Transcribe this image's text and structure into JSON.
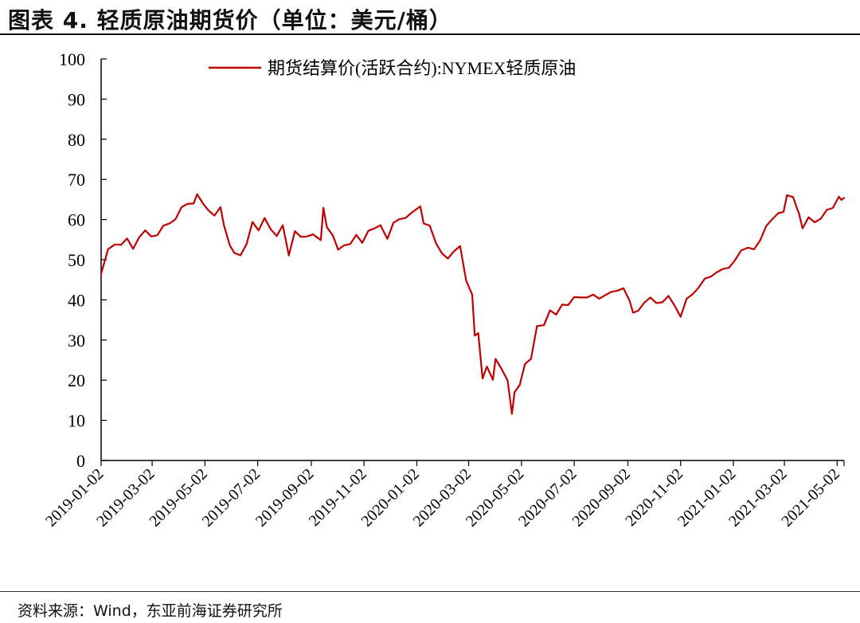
{
  "figure": {
    "title": "图表 4.  轻质原油期货价（单位：美元/桶）",
    "source": "资料来源：Wind，东亚前海证券研究所"
  },
  "chart_data": {
    "type": "line",
    "title": "",
    "xlabel": "",
    "ylabel": "",
    "ylim": [
      0,
      100
    ],
    "y_ticks": [
      0,
      10,
      20,
      30,
      40,
      50,
      60,
      70,
      80,
      90,
      100
    ],
    "x_ticks": [
      "2019-01-02",
      "2019-03-02",
      "2019-05-02",
      "2019-07-02",
      "2019-09-02",
      "2019-11-02",
      "2020-01-02",
      "2020-03-02",
      "2020-05-02",
      "2020-07-02",
      "2020-09-02",
      "2020-11-02",
      "2021-01-02",
      "2021-03-02",
      "2021-05-02"
    ],
    "x_range": [
      "2019-01-02",
      "2021-05-10"
    ],
    "grid": false,
    "legend_position": "top-center",
    "series": [
      {
        "name": "期货结算价(活跃合约):NYMEX轻质原油",
        "color": "#c00000",
        "points": [
          [
            "2019-01-02",
            46.5
          ],
          [
            "2019-01-10",
            52.6
          ],
          [
            "2019-01-18",
            53.8
          ],
          [
            "2019-01-25",
            53.7
          ],
          [
            "2019-02-01",
            55.3
          ],
          [
            "2019-02-08",
            52.7
          ],
          [
            "2019-02-15",
            55.6
          ],
          [
            "2019-02-22",
            57.3
          ],
          [
            "2019-03-01",
            55.8
          ],
          [
            "2019-03-08",
            56.1
          ],
          [
            "2019-03-15",
            58.5
          ],
          [
            "2019-03-22",
            59.0
          ],
          [
            "2019-03-29",
            60.1
          ],
          [
            "2019-04-05",
            63.1
          ],
          [
            "2019-04-12",
            63.9
          ],
          [
            "2019-04-19",
            64.0
          ],
          [
            "2019-04-23",
            66.3
          ],
          [
            "2019-04-30",
            63.9
          ],
          [
            "2019-05-06",
            62.3
          ],
          [
            "2019-05-13",
            61.0
          ],
          [
            "2019-05-20",
            63.1
          ],
          [
            "2019-05-24",
            58.6
          ],
          [
            "2019-05-31",
            53.5
          ],
          [
            "2019-06-05",
            51.7
          ],
          [
            "2019-06-12",
            51.1
          ],
          [
            "2019-06-19",
            53.8
          ],
          [
            "2019-06-26",
            59.4
          ],
          [
            "2019-07-03",
            57.3
          ],
          [
            "2019-07-10",
            60.4
          ],
          [
            "2019-07-17",
            57.6
          ],
          [
            "2019-07-24",
            55.9
          ],
          [
            "2019-07-31",
            58.6
          ],
          [
            "2019-08-07",
            51.1
          ],
          [
            "2019-08-14",
            57.1
          ],
          [
            "2019-08-21",
            55.7
          ],
          [
            "2019-08-28",
            55.8
          ],
          [
            "2019-09-04",
            56.3
          ],
          [
            "2019-09-13",
            54.9
          ],
          [
            "2019-09-16",
            62.9
          ],
          [
            "2019-09-20",
            58.1
          ],
          [
            "2019-09-27",
            56.0
          ],
          [
            "2019-10-03",
            52.5
          ],
          [
            "2019-10-10",
            53.6
          ],
          [
            "2019-10-17",
            53.9
          ],
          [
            "2019-10-24",
            56.2
          ],
          [
            "2019-10-31",
            54.2
          ],
          [
            "2019-11-07",
            57.2
          ],
          [
            "2019-11-14",
            57.8
          ],
          [
            "2019-11-21",
            58.6
          ],
          [
            "2019-11-29",
            55.2
          ],
          [
            "2019-12-06",
            59.2
          ],
          [
            "2019-12-13",
            60.1
          ],
          [
            "2019-12-20",
            60.4
          ],
          [
            "2019-12-27",
            61.7
          ],
          [
            "2020-01-06",
            63.3
          ],
          [
            "2020-01-10",
            59.0
          ],
          [
            "2020-01-17",
            58.5
          ],
          [
            "2020-01-24",
            54.2
          ],
          [
            "2020-01-31",
            51.6
          ],
          [
            "2020-02-07",
            50.3
          ],
          [
            "2020-02-14",
            52.1
          ],
          [
            "2020-02-21",
            53.4
          ],
          [
            "2020-02-28",
            44.8
          ],
          [
            "2020-03-06",
            41.3
          ],
          [
            "2020-03-09",
            31.1
          ],
          [
            "2020-03-13",
            31.7
          ],
          [
            "2020-03-18",
            20.4
          ],
          [
            "2020-03-23",
            23.4
          ],
          [
            "2020-03-30",
            20.1
          ],
          [
            "2020-04-02",
            25.3
          ],
          [
            "2020-04-09",
            22.8
          ],
          [
            "2020-04-16",
            19.9
          ],
          [
            "2020-04-21",
            11.6
          ],
          [
            "2020-04-24",
            17.0
          ],
          [
            "2020-04-30",
            18.8
          ],
          [
            "2020-05-06",
            24.0
          ],
          [
            "2020-05-13",
            25.3
          ],
          [
            "2020-05-20",
            33.5
          ],
          [
            "2020-05-28",
            33.7
          ],
          [
            "2020-06-04",
            37.4
          ],
          [
            "2020-06-11",
            36.3
          ],
          [
            "2020-06-18",
            38.8
          ],
          [
            "2020-06-25",
            38.7
          ],
          [
            "2020-07-02",
            40.7
          ],
          [
            "2020-07-10",
            40.6
          ],
          [
            "2020-07-17",
            40.6
          ],
          [
            "2020-07-24",
            41.3
          ],
          [
            "2020-07-31",
            40.3
          ],
          [
            "2020-08-07",
            41.2
          ],
          [
            "2020-08-14",
            42.0
          ],
          [
            "2020-08-21",
            42.3
          ],
          [
            "2020-08-28",
            42.9
          ],
          [
            "2020-09-04",
            39.8
          ],
          [
            "2020-09-08",
            36.8
          ],
          [
            "2020-09-14",
            37.3
          ],
          [
            "2020-09-21",
            39.3
          ],
          [
            "2020-09-28",
            40.6
          ],
          [
            "2020-10-05",
            39.2
          ],
          [
            "2020-10-12",
            39.4
          ],
          [
            "2020-10-19",
            41.0
          ],
          [
            "2020-10-26",
            38.6
          ],
          [
            "2020-11-02",
            35.8
          ],
          [
            "2020-11-09",
            40.3
          ],
          [
            "2020-11-16",
            41.4
          ],
          [
            "2020-11-23",
            43.1
          ],
          [
            "2020-11-30",
            45.3
          ],
          [
            "2020-12-07",
            45.8
          ],
          [
            "2020-12-14",
            46.9
          ],
          [
            "2020-12-21",
            47.7
          ],
          [
            "2020-12-28",
            48.0
          ],
          [
            "2021-01-04",
            49.9
          ],
          [
            "2021-01-11",
            52.3
          ],
          [
            "2021-01-19",
            53.0
          ],
          [
            "2021-01-26",
            52.6
          ],
          [
            "2021-02-02",
            54.8
          ],
          [
            "2021-02-09",
            58.4
          ],
          [
            "2021-02-16",
            60.1
          ],
          [
            "2021-02-23",
            61.6
          ],
          [
            "2021-03-01",
            61.9
          ],
          [
            "2021-03-05",
            66.1
          ],
          [
            "2021-03-12",
            65.6
          ],
          [
            "2021-03-19",
            61.4
          ],
          [
            "2021-03-23",
            57.8
          ],
          [
            "2021-03-30",
            60.6
          ],
          [
            "2021-04-06",
            59.3
          ],
          [
            "2021-04-13",
            60.2
          ],
          [
            "2021-04-20",
            62.4
          ],
          [
            "2021-04-27",
            62.9
          ],
          [
            "2021-05-04",
            65.7
          ],
          [
            "2021-05-07",
            64.9
          ],
          [
            "2021-05-10",
            65.4
          ]
        ]
      }
    ]
  }
}
